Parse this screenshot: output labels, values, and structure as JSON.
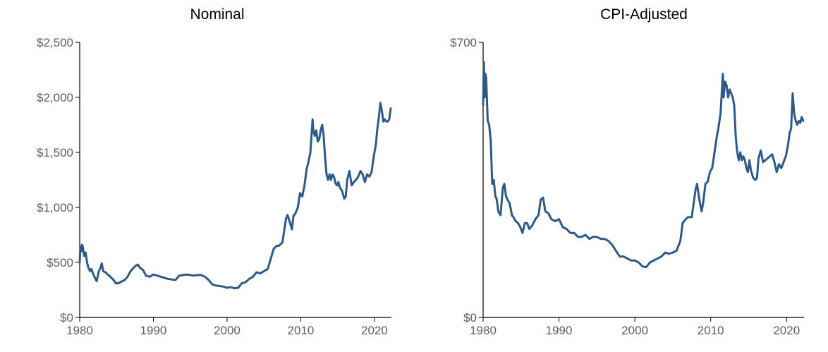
{
  "colors": {
    "series": "#2e5a87",
    "axis": "#000000",
    "tick_text": "#5f5f5f"
  },
  "chart_data": [
    {
      "type": "line",
      "title": "Nominal",
      "xlabel": "",
      "ylabel": "",
      "xlim": [
        1980,
        2022.3
      ],
      "ylim": [
        0,
        2500
      ],
      "x_ticks": [
        1980,
        1990,
        2000,
        2010,
        2020
      ],
      "y_ticks": [
        0,
        500,
        1000,
        1500,
        2000,
        2500
      ],
      "y_tick_labels": [
        "$0",
        "$500",
        "$1,000",
        "$1,500",
        "$2,000",
        "$2,500"
      ],
      "grid": false,
      "series": [
        {
          "x": [
            1980.0,
            1980.1,
            1980.2,
            1980.3,
            1980.4,
            1980.6,
            1980.8,
            1981.0,
            1981.2,
            1981.4,
            1981.6,
            1981.8,
            1982.0,
            1982.3,
            1982.6,
            1982.8,
            1983.0,
            1983.2,
            1983.5,
            1983.8,
            1984.0,
            1984.3,
            1984.6,
            1984.9,
            1985.2,
            1985.5,
            1985.8,
            1986.1,
            1986.5,
            1986.9,
            1987.3,
            1987.6,
            1987.9,
            1988.2,
            1988.6,
            1989.0,
            1989.5,
            1990.0,
            1990.5,
            1991.0,
            1991.5,
            1992.0,
            1992.5,
            1993.0,
            1993.5,
            1994.0,
            1994.5,
            1995.0,
            1995.5,
            1996.0,
            1996.5,
            1997.0,
            1997.5,
            1998.0,
            1998.5,
            1999.0,
            1999.5,
            2000.0,
            2000.5,
            2001.0,
            2001.5,
            2002.0,
            2002.5,
            2003.0,
            2003.5,
            2004.0,
            2004.5,
            2005.0,
            2005.5,
            2006.0,
            2006.3,
            2006.7,
            2007.0,
            2007.5,
            2008.0,
            2008.2,
            2008.5,
            2008.8,
            2009.0,
            2009.3,
            2009.6,
            2009.9,
            2010.2,
            2010.5,
            2010.8,
            2011.0,
            2011.3,
            2011.6,
            2011.7,
            2011.9,
            2012.1,
            2012.3,
            2012.5,
            2012.7,
            2012.9,
            2013.1,
            2013.3,
            2013.5,
            2013.7,
            2013.9,
            2014.1,
            2014.3,
            2014.5,
            2014.7,
            2014.9,
            2015.1,
            2015.3,
            2015.6,
            2015.9,
            2016.1,
            2016.3,
            2016.6,
            2016.9,
            2017.2,
            2017.5,
            2017.8,
            2018.1,
            2018.4,
            2018.7,
            2019.0,
            2019.3,
            2019.6,
            2019.9,
            2020.2,
            2020.4,
            2020.6,
            2020.8,
            2021.0,
            2021.2,
            2021.4,
            2021.6,
            2021.8,
            2022.0,
            2022.2
          ],
          "values": [
            500,
            640,
            600,
            660,
            650,
            560,
            590,
            500,
            450,
            420,
            440,
            400,
            370,
            330,
            420,
            450,
            490,
            420,
            410,
            390,
            380,
            360,
            340,
            310,
            310,
            320,
            330,
            340,
            370,
            420,
            450,
            470,
            480,
            450,
            430,
            380,
            370,
            390,
            380,
            370,
            360,
            350,
            345,
            340,
            380,
            385,
            390,
            385,
            380,
            385,
            385,
            370,
            340,
            300,
            290,
            285,
            280,
            270,
            275,
            265,
            270,
            310,
            320,
            350,
            370,
            410,
            400,
            420,
            440,
            550,
            620,
            650,
            650,
            680,
            900,
            930,
            870,
            800,
            920,
            950,
            1000,
            1130,
            1100,
            1200,
            1350,
            1400,
            1500,
            1800,
            1700,
            1650,
            1700,
            1600,
            1620,
            1700,
            1750,
            1650,
            1450,
            1300,
            1250,
            1300,
            1250,
            1300,
            1280,
            1220,
            1200,
            1230,
            1180,
            1150,
            1080,
            1100,
            1250,
            1330,
            1200,
            1230,
            1250,
            1280,
            1330,
            1300,
            1230,
            1300,
            1280,
            1320,
            1460,
            1580,
            1720,
            1820,
            1950,
            1880,
            1780,
            1800,
            1780,
            1780,
            1800,
            1900
          ]
        }
      ]
    },
    {
      "type": "line",
      "title": "CPI-Adjusted",
      "xlabel": "",
      "ylabel": "",
      "xlim": [
        1980,
        2022.3
      ],
      "ylim": [
        0,
        700
      ],
      "x_ticks": [
        1980,
        1990,
        2000,
        2010,
        2020
      ],
      "y_ticks": [
        0,
        700
      ],
      "y_tick_labels": [
        "$0",
        "$700"
      ],
      "grid": false,
      "series": [
        {
          "x": [
            1980.0,
            1980.1,
            1980.2,
            1980.3,
            1980.4,
            1980.6,
            1980.8,
            1981.0,
            1981.2,
            1981.4,
            1981.6,
            1981.8,
            1982.0,
            1982.3,
            1982.6,
            1982.8,
            1983.0,
            1983.2,
            1983.5,
            1983.8,
            1984.0,
            1984.3,
            1984.6,
            1984.9,
            1985.2,
            1985.5,
            1985.8,
            1986.1,
            1986.5,
            1986.9,
            1987.3,
            1987.6,
            1987.9,
            1988.2,
            1988.6,
            1989.0,
            1989.5,
            1990.0,
            1990.5,
            1991.0,
            1991.5,
            1992.0,
            1992.5,
            1993.0,
            1993.5,
            1994.0,
            1994.5,
            1995.0,
            1995.5,
            1996.0,
            1996.5,
            1997.0,
            1997.5,
            1998.0,
            1998.5,
            1999.0,
            1999.5,
            2000.0,
            2000.5,
            2001.0,
            2001.5,
            2002.0,
            2002.5,
            2003.0,
            2003.5,
            2004.0,
            2004.5,
            2005.0,
            2005.5,
            2006.0,
            2006.3,
            2006.7,
            2007.0,
            2007.5,
            2008.0,
            2008.2,
            2008.5,
            2008.8,
            2009.0,
            2009.3,
            2009.6,
            2009.9,
            2010.2,
            2010.5,
            2010.8,
            2011.0,
            2011.3,
            2011.6,
            2011.7,
            2011.9,
            2012.1,
            2012.3,
            2012.5,
            2012.7,
            2012.9,
            2013.1,
            2013.3,
            2013.5,
            2013.7,
            2013.9,
            2014.1,
            2014.3,
            2014.5,
            2014.7,
            2014.9,
            2015.1,
            2015.3,
            2015.6,
            2015.9,
            2016.1,
            2016.3,
            2016.6,
            2016.9,
            2017.2,
            2017.5,
            2017.8,
            2018.1,
            2018.4,
            2018.7,
            2019.0,
            2019.3,
            2019.6,
            2019.9,
            2020.2,
            2020.4,
            2020.6,
            2020.8,
            2021.0,
            2021.2,
            2021.4,
            2021.6,
            2021.8,
            2022.0,
            2022.2
          ],
          "values": [
            540,
            650,
            560,
            620,
            610,
            500,
            490,
            450,
            340,
            350,
            310,
            300,
            270,
            260,
            330,
            340,
            310,
            300,
            290,
            260,
            255,
            245,
            240,
            230,
            215,
            240,
            240,
            225,
            235,
            250,
            260,
            300,
            305,
            270,
            265,
            250,
            245,
            250,
            230,
            225,
            215,
            215,
            205,
            205,
            210,
            200,
            205,
            205,
            200,
            200,
            195,
            185,
            170,
            155,
            155,
            150,
            145,
            145,
            140,
            130,
            128,
            140,
            145,
            150,
            155,
            165,
            162,
            165,
            170,
            195,
            240,
            250,
            255,
            255,
            325,
            340,
            300,
            270,
            290,
            340,
            345,
            370,
            380,
            420,
            460,
            480,
            520,
            620,
            560,
            600,
            590,
            560,
            580,
            570,
            560,
            540,
            460,
            420,
            400,
            420,
            400,
            410,
            400,
            380,
            370,
            400,
            375,
            355,
            350,
            355,
            405,
            425,
            395,
            400,
            405,
            410,
            415,
            395,
            370,
            390,
            380,
            395,
            410,
            440,
            470,
            480,
            570,
            520,
            500,
            490,
            500,
            495,
            510,
            500
          ]
        }
      ]
    }
  ]
}
